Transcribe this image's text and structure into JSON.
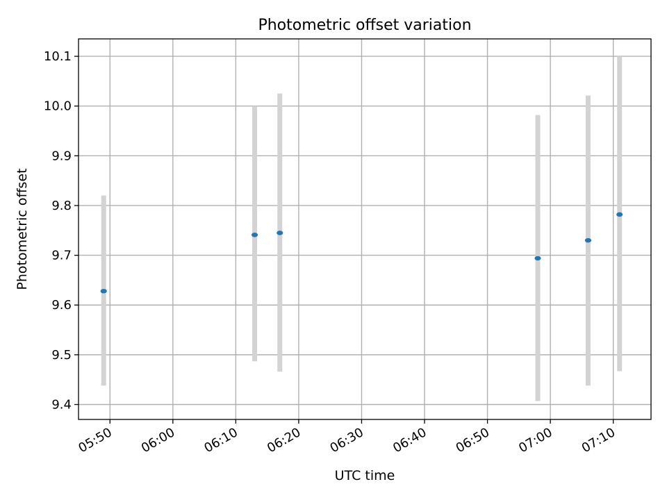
{
  "chart_data": {
    "type": "scatter",
    "title": "Photometric offset variation",
    "xlabel": "UTC time",
    "ylabel": "Photometric offset",
    "x_tick_labels": [
      "05:50",
      "06:00",
      "06:10",
      "06:20",
      "06:30",
      "06:40",
      "06:50",
      "07:00",
      "07:10"
    ],
    "y_tick_labels": [
      "9.4",
      "9.5",
      "9.6",
      "9.7",
      "9.8",
      "9.9",
      "10.0",
      "10.1"
    ],
    "xlim": [
      "05:45",
      "07:16"
    ],
    "ylim": [
      9.37,
      10.135
    ],
    "grid": true,
    "colors": {
      "marker": "#1f77b4",
      "errorbar": "#d3d3d3",
      "grid": "#b0b0b0"
    },
    "points": [
      {
        "x": "05:49",
        "y": 9.628,
        "ylow": 9.438,
        "yhigh": 9.82
      },
      {
        "x": "06:13",
        "y": 9.741,
        "ylow": 9.487,
        "yhigh": 10.0
      },
      {
        "x": "06:17",
        "y": 9.745,
        "ylow": 9.466,
        "yhigh": 10.025
      },
      {
        "x": "06:58",
        "y": 9.694,
        "ylow": 9.407,
        "yhigh": 9.982
      },
      {
        "x": "07:06",
        "y": 9.73,
        "ylow": 9.438,
        "yhigh": 10.021
      },
      {
        "x": "07:11",
        "y": 9.782,
        "ylow": 9.467,
        "yhigh": 10.1
      }
    ]
  }
}
